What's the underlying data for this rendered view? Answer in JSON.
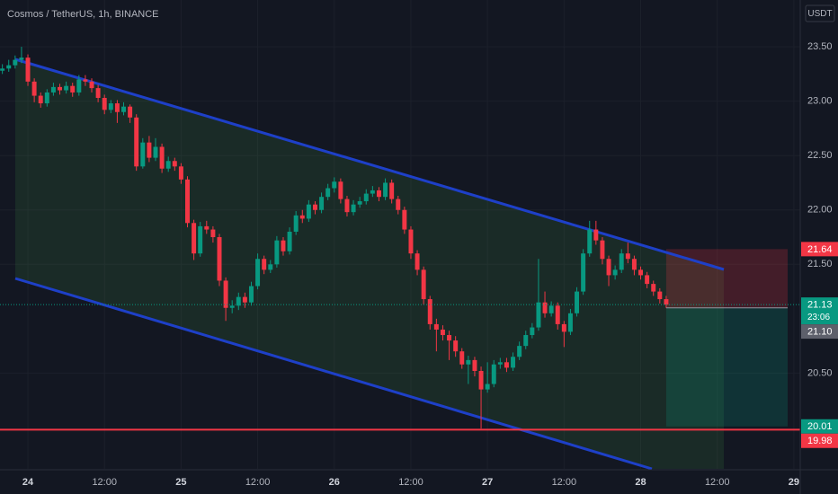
{
  "chart_data": {
    "type": "candlestick",
    "title": "Cosmos / TetherUS, 1h, BINANCE",
    "currency": "USDT",
    "x": [
      -4,
      -3,
      -2,
      -1,
      0,
      1,
      2,
      3,
      4,
      5,
      6,
      7,
      8,
      9,
      10,
      11,
      12,
      13,
      14,
      15,
      16,
      17,
      18,
      19,
      20,
      21,
      22,
      23,
      24,
      25,
      26,
      27,
      28,
      29,
      30,
      31,
      32,
      33,
      34,
      35,
      36,
      37,
      38,
      39,
      40,
      41,
      42,
      43,
      44,
      45,
      46,
      47,
      48,
      49,
      50,
      51,
      52,
      53,
      54,
      55,
      56,
      57,
      58,
      59,
      60,
      61,
      62,
      63,
      64,
      65,
      66,
      67,
      68,
      69,
      70,
      71,
      72,
      73,
      74,
      75,
      76,
      77,
      78,
      79,
      80,
      81,
      82,
      83,
      84,
      85,
      86,
      87,
      88,
      89,
      90,
      91,
      92,
      93,
      94,
      95,
      96,
      97,
      98,
      99,
      100
    ],
    "open": [
      23.28,
      23.3,
      23.33,
      23.38,
      23.4,
      23.18,
      23.05,
      22.98,
      23.08,
      23.13,
      23.1,
      23.14,
      23.08,
      23.2,
      23.18,
      23.12,
      23.03,
      22.92,
      22.98,
      22.9,
      22.95,
      22.85,
      22.4,
      22.62,
      22.48,
      22.58,
      22.38,
      22.45,
      22.4,
      22.28,
      21.88,
      21.6,
      21.85,
      21.82,
      21.75,
      21.35,
      21.1,
      21.12,
      21.2,
      21.15,
      21.3,
      21.55,
      21.45,
      21.5,
      21.72,
      21.62,
      21.8,
      21.95,
      21.92,
      22.05,
      22.0,
      22.12,
      22.2,
      22.26,
      22.1,
      21.98,
      22.05,
      22.08,
      22.15,
      22.18,
      22.12,
      22.25,
      22.1,
      22.0,
      21.82,
      21.6,
      21.45,
      21.18,
      20.95,
      20.9,
      20.85,
      20.8,
      20.7,
      20.58,
      20.62,
      20.52,
      20.35,
      20.4,
      20.58,
      20.6,
      20.55,
      20.65,
      20.75,
      20.85,
      20.92,
      21.15,
      21.05,
      21.12,
      20.95,
      20.88,
      21.05,
      21.25,
      21.6,
      21.82,
      21.72,
      21.55,
      21.4,
      21.45,
      21.6,
      21.55,
      21.45,
      21.4,
      21.32,
      21.25,
      21.18
    ],
    "high": [
      23.34,
      23.38,
      23.42,
      23.5,
      23.43,
      23.21,
      23.08,
      23.11,
      23.17,
      23.16,
      23.18,
      23.17,
      23.24,
      23.24,
      23.21,
      23.15,
      23.06,
      23.01,
      23.01,
      22.99,
      22.97,
      22.88,
      22.66,
      22.68,
      22.66,
      22.61,
      22.49,
      22.48,
      22.43,
      22.31,
      21.91,
      21.89,
      21.9,
      21.85,
      21.78,
      21.38,
      21.17,
      21.24,
      21.24,
      21.34,
      21.6,
      21.58,
      21.54,
      21.76,
      21.75,
      21.84,
      21.99,
      22.0,
      22.09,
      22.08,
      22.16,
      22.24,
      22.3,
      22.29,
      22.13,
      22.09,
      22.12,
      22.19,
      22.22,
      22.21,
      22.29,
      22.28,
      22.13,
      22.03,
      21.85,
      21.63,
      21.48,
      21.21,
      21.0,
      20.94,
      20.89,
      20.84,
      20.73,
      20.66,
      20.65,
      20.56,
      20.6,
      20.62,
      20.64,
      20.64,
      20.69,
      20.79,
      20.89,
      20.96,
      21.55,
      21.25,
      21.16,
      21.15,
      20.98,
      21.09,
      21.29,
      21.64,
      21.9,
      21.9,
      21.75,
      21.58,
      21.49,
      21.64,
      21.7,
      21.58,
      21.48,
      21.43,
      21.35,
      21.28,
      21.21
    ],
    "low": [
      23.25,
      23.27,
      23.3,
      23.35,
      23.14,
      22.99,
      22.94,
      22.95,
      23.05,
      23.06,
      23.07,
      23.04,
      23.05,
      23.14,
      23.08,
      22.99,
      22.88,
      22.89,
      22.8,
      22.87,
      22.8,
      22.36,
      22.38,
      22.44,
      22.45,
      22.34,
      22.35,
      22.36,
      22.24,
      21.84,
      21.54,
      21.57,
      21.78,
      21.7,
      21.3,
      20.98,
      21.05,
      21.08,
      21.1,
      21.12,
      21.27,
      21.41,
      21.42,
      21.47,
      21.58,
      21.59,
      21.77,
      21.88,
      21.89,
      21.96,
      21.97,
      22.09,
      22.16,
      22.06,
      21.94,
      21.95,
      22.02,
      22.05,
      22.12,
      22.08,
      22.09,
      22.06,
      21.96,
      21.78,
      21.55,
      21.4,
      21.13,
      20.9,
      20.7,
      20.8,
      20.62,
      20.65,
      20.54,
      20.4,
      20.47,
      19.99,
      20.32,
      20.37,
      20.54,
      20.51,
      20.52,
      20.62,
      20.72,
      20.82,
      20.89,
      21.01,
      21.02,
      20.9,
      20.74,
      20.85,
      21.02,
      21.22,
      21.57,
      21.68,
      21.5,
      21.3,
      21.36,
      21.42,
      21.51,
      21.4,
      21.36,
      21.28,
      21.21,
      21.14,
      21.1
    ],
    "close": [
      23.3,
      23.33,
      23.38,
      23.4,
      23.18,
      23.05,
      22.98,
      23.08,
      23.13,
      23.1,
      23.14,
      23.08,
      23.2,
      23.18,
      23.12,
      23.03,
      22.92,
      22.98,
      22.9,
      22.95,
      22.85,
      22.4,
      22.62,
      22.48,
      22.58,
      22.38,
      22.45,
      22.4,
      22.28,
      21.88,
      21.6,
      21.85,
      21.82,
      21.75,
      21.35,
      21.1,
      21.12,
      21.2,
      21.15,
      21.3,
      21.55,
      21.45,
      21.5,
      21.72,
      21.62,
      21.8,
      21.95,
      21.92,
      22.05,
      22.0,
      22.12,
      22.2,
      22.26,
      22.1,
      21.98,
      22.05,
      22.08,
      22.15,
      22.18,
      22.12,
      22.25,
      22.1,
      22.0,
      21.82,
      21.6,
      21.45,
      21.18,
      20.95,
      20.9,
      20.85,
      20.8,
      20.7,
      20.58,
      20.62,
      20.52,
      20.35,
      20.4,
      20.58,
      20.6,
      20.55,
      20.65,
      20.75,
      20.85,
      20.92,
      21.15,
      21.05,
      21.12,
      20.95,
      20.88,
      21.05,
      21.25,
      21.6,
      21.82,
      21.72,
      21.55,
      21.4,
      21.45,
      21.6,
      21.55,
      21.45,
      21.4,
      21.32,
      21.25,
      21.18,
      21.13
    ],
    "up_color": "#089981",
    "down_color": "#f23645",
    "xlim": [
      -4.37,
      121
    ],
    "xticks": [
      {
        "value": 0,
        "label": "24"
      },
      {
        "value": 12,
        "label": "12:00"
      },
      {
        "value": 24,
        "label": "25"
      },
      {
        "value": 36,
        "label": "12:00"
      },
      {
        "value": 48,
        "label": "26"
      },
      {
        "value": 60,
        "label": "12:00"
      },
      {
        "value": 72,
        "label": "27"
      },
      {
        "value": 84,
        "label": "12:00"
      },
      {
        "value": 96,
        "label": "28"
      },
      {
        "value": 108,
        "label": "12:00"
      },
      {
        "value": 120,
        "label": "29"
      }
    ],
    "ylim": [
      19.62,
      23.93
    ],
    "yticks": [
      {
        "value": 23.5,
        "label": "23.50"
      },
      {
        "value": 23,
        "label": "23.00"
      },
      {
        "value": 22.5,
        "label": "22.50"
      },
      {
        "value": 22,
        "label": "22.00"
      },
      {
        "value": 21.5,
        "label": "21.50"
      },
      {
        "value": 20.5,
        "label": "20.50"
      }
    ],
    "grid": true,
    "markers": [
      {
        "value": 21.64,
        "color": "#f23645"
      },
      {
        "value": 21.13,
        "countdown": "23:06",
        "color": "#089981"
      },
      {
        "value": 21.1,
        "label": "21.10",
        "color": "#5d606b"
      },
      {
        "value": 20.01,
        "color": "#089981"
      },
      {
        "value": 19.98,
        "color": "#f23645"
      }
    ]
  }
}
